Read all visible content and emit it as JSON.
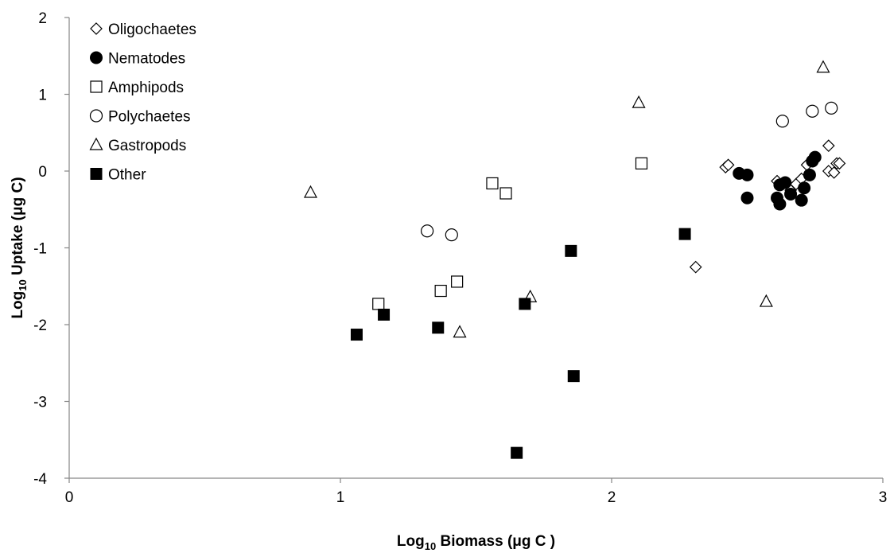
{
  "chart_data": {
    "type": "scatter",
    "xlabel": {
      "prefix": "Log",
      "sub": "10",
      "suffix": " Biomass (μg C )"
    },
    "ylabel": {
      "prefix": "Log",
      "sub": "10",
      "suffix": " Uptake (μg C)"
    },
    "xlim": [
      0,
      3
    ],
    "ylim": [
      -4,
      2
    ],
    "xticks": [
      0,
      1,
      2,
      3
    ],
    "yticks": [
      -4,
      -3,
      -2,
      -1,
      0,
      1,
      2
    ],
    "grid": false,
    "legend_position": "top-left",
    "series": [
      {
        "name": "Oligochaetes",
        "marker": "diamond-open",
        "points": [
          {
            "x": 2.42,
            "y": 0.05
          },
          {
            "x": 2.43,
            "y": 0.08
          },
          {
            "x": 2.31,
            "y": -1.25
          },
          {
            "x": 2.61,
            "y": -0.13
          },
          {
            "x": 2.66,
            "y": -0.25
          },
          {
            "x": 2.68,
            "y": -0.17
          },
          {
            "x": 2.7,
            "y": -0.1
          },
          {
            "x": 2.72,
            "y": 0.08
          },
          {
            "x": 2.8,
            "y": 0.33
          },
          {
            "x": 2.8,
            "y": 0.0
          },
          {
            "x": 2.82,
            "y": -0.02
          },
          {
            "x": 2.83,
            "y": 0.1
          },
          {
            "x": 2.84,
            "y": 0.1
          }
        ]
      },
      {
        "name": "Nematodes",
        "marker": "circle-filled",
        "points": [
          {
            "x": 2.47,
            "y": -0.03
          },
          {
            "x": 2.5,
            "y": -0.05
          },
          {
            "x": 2.5,
            "y": -0.35
          },
          {
            "x": 2.61,
            "y": -0.35
          },
          {
            "x": 2.62,
            "y": -0.43
          },
          {
            "x": 2.62,
            "y": -0.18
          },
          {
            "x": 2.64,
            "y": -0.15
          },
          {
            "x": 2.66,
            "y": -0.3
          },
          {
            "x": 2.7,
            "y": -0.38
          },
          {
            "x": 2.71,
            "y": -0.22
          },
          {
            "x": 2.73,
            "y": -0.05
          },
          {
            "x": 2.74,
            "y": 0.13
          },
          {
            "x": 2.75,
            "y": 0.18
          }
        ]
      },
      {
        "name": "Amphipods",
        "marker": "square-open",
        "points": [
          {
            "x": 1.14,
            "y": -1.73
          },
          {
            "x": 1.37,
            "y": -1.56
          },
          {
            "x": 1.43,
            "y": -1.44
          },
          {
            "x": 1.56,
            "y": -0.16
          },
          {
            "x": 1.61,
            "y": -0.29
          },
          {
            "x": 2.11,
            "y": 0.1
          }
        ]
      },
      {
        "name": "Polychaetes",
        "marker": "circle-open",
        "points": [
          {
            "x": 1.32,
            "y": -0.78
          },
          {
            "x": 1.41,
            "y": -0.83
          },
          {
            "x": 2.63,
            "y": 0.65
          },
          {
            "x": 2.74,
            "y": 0.78
          },
          {
            "x": 2.81,
            "y": 0.82
          }
        ]
      },
      {
        "name": "Gastropods",
        "marker": "triangle-open",
        "points": [
          {
            "x": 0.89,
            "y": -0.28
          },
          {
            "x": 1.44,
            "y": -2.1
          },
          {
            "x": 1.7,
            "y": -1.64
          },
          {
            "x": 2.1,
            "y": 0.89
          },
          {
            "x": 2.57,
            "y": -1.7
          },
          {
            "x": 2.78,
            "y": 1.35
          }
        ]
      },
      {
        "name": "Other",
        "marker": "square-filled",
        "points": [
          {
            "x": 1.06,
            "y": -2.13
          },
          {
            "x": 1.16,
            "y": -1.87
          },
          {
            "x": 1.36,
            "y": -2.04
          },
          {
            "x": 1.65,
            "y": -3.67
          },
          {
            "x": 1.68,
            "y": -1.73
          },
          {
            "x": 1.85,
            "y": -1.04
          },
          {
            "x": 1.86,
            "y": -2.67
          },
          {
            "x": 2.27,
            "y": -0.82
          }
        ]
      }
    ]
  }
}
